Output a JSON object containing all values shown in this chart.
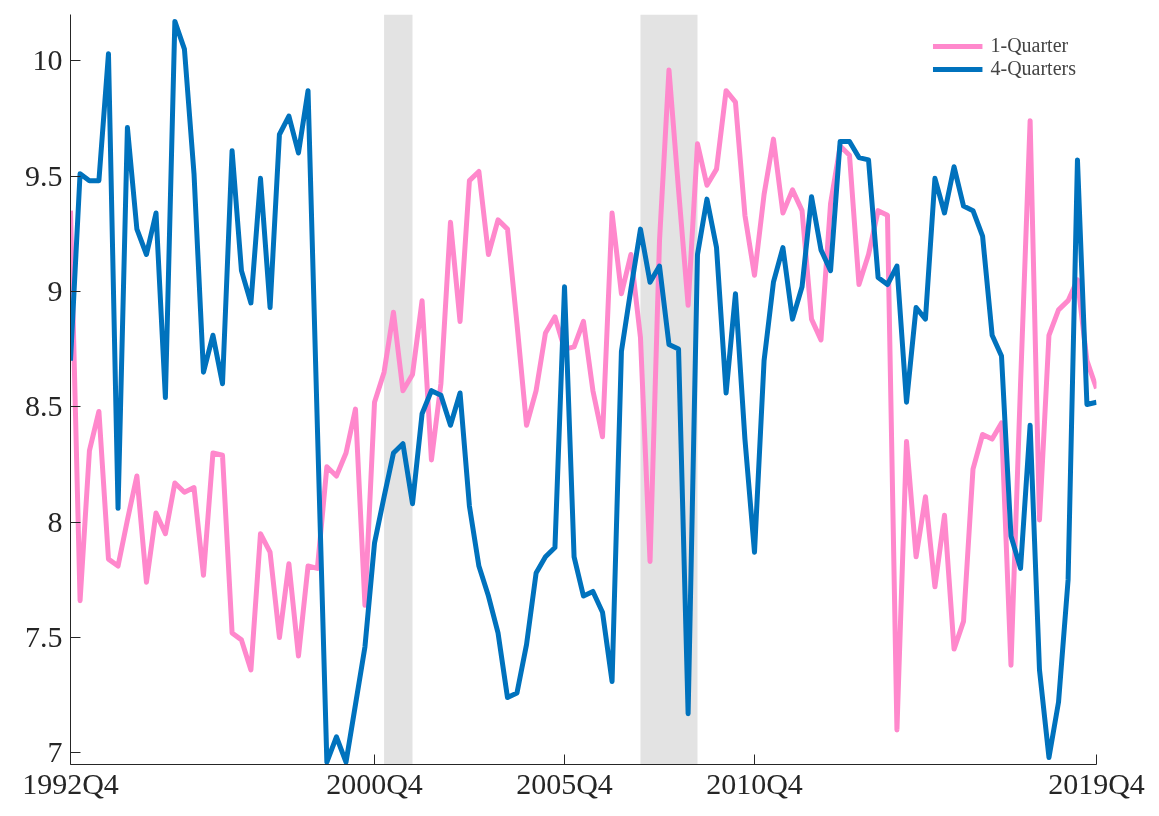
{
  "chart_data": {
    "type": "line",
    "x": [
      "1992-10",
      "1993-01",
      "1993-04",
      "1993-07",
      "1993-10",
      "1994-01",
      "1994-04",
      "1994-07",
      "1994-10",
      "1995-01",
      "1995-04",
      "1995-07",
      "1995-10",
      "1996-01",
      "1996-04",
      "1996-07",
      "1996-10",
      "1997-01",
      "1997-04",
      "1997-07",
      "1997-10",
      "1998-01",
      "1998-04",
      "1998-07",
      "1998-10",
      "1999-01",
      "1999-04",
      "1999-07",
      "1999-10",
      "2000-01",
      "2000-04",
      "2000-07",
      "2000-10",
      "2001-01",
      "2001-04",
      "2001-07",
      "2001-10",
      "2002-01",
      "2002-04",
      "2002-07",
      "2002-10",
      "2003-01",
      "2003-04",
      "2003-07",
      "2003-10",
      "2004-01",
      "2004-04",
      "2004-07",
      "2004-10",
      "2005-01",
      "2005-04",
      "2005-07",
      "2005-10",
      "2006-01",
      "2006-04",
      "2006-07",
      "2006-10",
      "2007-01",
      "2007-04",
      "2007-07",
      "2007-10",
      "2008-01",
      "2008-04",
      "2008-07",
      "2008-10",
      "2009-01",
      "2009-04",
      "2009-07",
      "2009-10",
      "2010-01",
      "2010-04",
      "2010-07",
      "2010-10",
      "2011-01",
      "2011-04",
      "2011-07",
      "2011-10",
      "2012-01",
      "2012-04",
      "2012-07",
      "2012-10",
      "2013-01",
      "2013-04",
      "2013-07",
      "2013-10",
      "2014-01",
      "2014-04",
      "2014-07",
      "2014-10",
      "2015-01",
      "2015-04",
      "2015-07",
      "2015-10",
      "2016-01",
      "2016-04",
      "2016-07",
      "2016-10",
      "2017-01",
      "2017-04",
      "2017-07",
      "2017-10",
      "2018-01",
      "2018-04",
      "2018-07",
      "2018-10",
      "2019-01",
      "2019-04",
      "2019-07",
      "2019-10"
    ],
    "series": [
      {
        "name": "1-Quarter",
        "color": "#ff88cc",
        "values": [
          9.35,
          7.66,
          8.31,
          8.48,
          7.84,
          7.81,
          8.01,
          8.2,
          7.74,
          8.04,
          7.95,
          8.17,
          8.13,
          8.15,
          7.77,
          8.3,
          8.29,
          7.52,
          7.49,
          7.36,
          7.95,
          7.87,
          7.5,
          7.82,
          7.42,
          7.81,
          7.8,
          8.24,
          8.2,
          8.3,
          8.49,
          7.64,
          8.52,
          8.65,
          8.91,
          8.57,
          8.64,
          8.96,
          8.27,
          8.6,
          9.3,
          8.87,
          9.48,
          9.52,
          9.16,
          9.31,
          9.27,
          8.86,
          8.42,
          8.57,
          8.82,
          8.89,
          8.75,
          8.76,
          8.87,
          8.57,
          8.37,
          9.34,
          8.99,
          9.16,
          8.8,
          7.83,
          9.22,
          9.96,
          9.44,
          8.94,
          9.64,
          9.46,
          9.53,
          9.87,
          9.82,
          9.33,
          9.07,
          9.42,
          9.66,
          9.34,
          9.44,
          9.35,
          8.88,
          8.79,
          9.38,
          9.63,
          9.59,
          9.03,
          9.16,
          9.35,
          9.33,
          7.1,
          8.35,
          7.85,
          8.11,
          7.72,
          8.03,
          7.45,
          7.57,
          8.23,
          8.38,
          8.36,
          8.43,
          7.38,
          8.6,
          9.74,
          8.01,
          8.81,
          8.92,
          8.96,
          9.05,
          8.7,
          8.58
        ]
      },
      {
        "name": "4-Quarters",
        "color": "#0072bd",
        "values": [
          8.7,
          9.51,
          9.48,
          9.48,
          10.03,
          8.06,
          9.71,
          9.27,
          9.16,
          9.34,
          8.54,
          10.17,
          10.05,
          9.51,
          8.65,
          8.81,
          8.6,
          9.61,
          9.09,
          8.95,
          9.49,
          8.93,
          9.68,
          9.76,
          9.6,
          9.87,
          8.41,
          6.96,
          7.07,
          6.96,
          7.21,
          7.46,
          7.91,
          8.11,
          8.3,
          8.34,
          8.08,
          8.47,
          8.57,
          8.55,
          8.42,
          8.56,
          8.07,
          7.81,
          7.68,
          7.52,
          7.24,
          7.26,
          7.47,
          7.78,
          7.85,
          7.89,
          9.02,
          7.85,
          7.68,
          7.7,
          7.61,
          7.31,
          8.74,
          9.01,
          9.27,
          9.04,
          9.11,
          8.77,
          8.75,
          7.17,
          9.16,
          9.4,
          9.19,
          8.56,
          8.99,
          8.36,
          7.87,
          8.7,
          9.04,
          9.19,
          8.88,
          9.02,
          9.41,
          9.18,
          9.09,
          9.65,
          9.65,
          9.58,
          9.57,
          9.06,
          9.03,
          9.11,
          8.52,
          8.93,
          8.88,
          9.49,
          9.34,
          9.54,
          9.37,
          9.35,
          9.24,
          8.81,
          8.72,
          7.94,
          7.8,
          8.42,
          7.36,
          6.98,
          7.22,
          7.75,
          9.57,
          8.51,
          8.52
        ]
      }
    ],
    "xlim": [
      "1992-10",
      "2019-10"
    ],
    "xticks": [
      {
        "value": "1992-10",
        "label": "1992Q4"
      },
      {
        "value": "2000-10",
        "label": "2000Q4"
      },
      {
        "value": "2005-10",
        "label": "2005Q4"
      },
      {
        "value": "2010-10",
        "label": "2010Q4"
      },
      {
        "value": "2019-10",
        "label": "2019Q4"
      }
    ],
    "ylim": [
      6.95,
      10.2
    ],
    "yticks": [
      7,
      7.5,
      8,
      8.5,
      9,
      9.5,
      10
    ],
    "bands": [
      {
        "axis": "x",
        "from": "2001-01",
        "to": "2001-10",
        "color": "#e3e3e3"
      },
      {
        "axis": "x",
        "from": "2007-10",
        "to": "2009-04",
        "color": "#e3e3e3"
      }
    ],
    "legend": "top right",
    "grid": false,
    "line_style": "solid",
    "marker": "none"
  }
}
